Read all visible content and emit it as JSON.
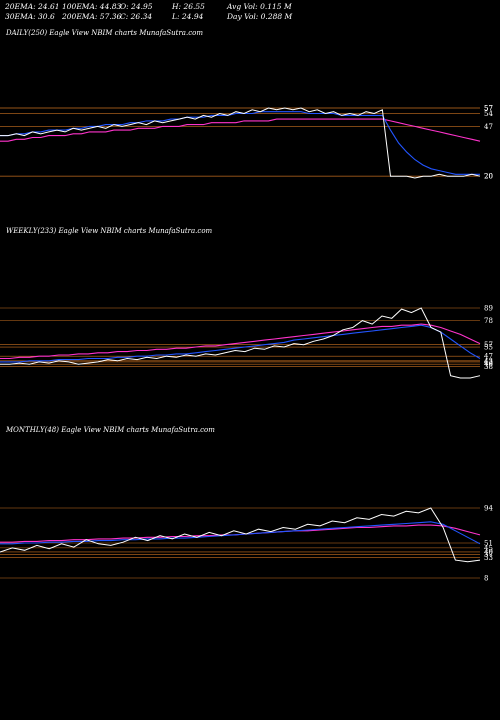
{
  "stats": {
    "ema20": "20EMA: 24.61",
    "ema100": "100EMA: 44.83",
    "open": "O: 24.95",
    "high": "H: 26.55",
    "avgvol": "Avg Vol: 0.115 M",
    "ema30": "30EMA: 30.6",
    "ema200": "200EMA: 57.36",
    "close": "C: 26.34",
    "low": "L: 24.94",
    "dayvol": "Day Vol: 0.288 M"
  },
  "colors": {
    "background": "#000000",
    "price": "#ffffff",
    "ema_short": "#2255ff",
    "ema_long": "#ff33cc",
    "ema_other": "#cccccc",
    "levels": "#c87020"
  },
  "chart_data": [
    {
      "type": "line",
      "title": "DAILY(250) Eagle  View  NBIM charts MunafaSutra.com",
      "right_labels": [
        "57",
        "57",
        "54",
        "47",
        "20",
        "20"
      ],
      "price": [
        42,
        42,
        43,
        42,
        44,
        43,
        44,
        45,
        44,
        46,
        45,
        46,
        47,
        46,
        48,
        47,
        48,
        49,
        48,
        50,
        49,
        50,
        51,
        52,
        51,
        53,
        52,
        54,
        53,
        55,
        54,
        56,
        55,
        57,
        56,
        57,
        56,
        57,
        55,
        56,
        54,
        55,
        53,
        54,
        53,
        55,
        54,
        56,
        20,
        20,
        20,
        19,
        20,
        20,
        21,
        20,
        20,
        20,
        21,
        20
      ],
      "ema_short": [
        42,
        42,
        43,
        43,
        44,
        44,
        45,
        45,
        45,
        46,
        46,
        47,
        47,
        48,
        48,
        48,
        49,
        49,
        50,
        50,
        50,
        51,
        51,
        52,
        52,
        52,
        53,
        53,
        53,
        54,
        54,
        54,
        55,
        55,
        55,
        55,
        55,
        55,
        54,
        54,
        54,
        54,
        53,
        53,
        53,
        53,
        53,
        53,
        45,
        38,
        33,
        29,
        26,
        24,
        23,
        22,
        21,
        21,
        21,
        21
      ],
      "ema_long": [
        39,
        39,
        40,
        40,
        41,
        41,
        42,
        42,
        42,
        43,
        43,
        44,
        44,
        44,
        45,
        45,
        45,
        46,
        46,
        46,
        47,
        47,
        47,
        48,
        48,
        48,
        49,
        49,
        49,
        49,
        50,
        50,
        50,
        50,
        51,
        51,
        51,
        51,
        51,
        51,
        51,
        51,
        51,
        51,
        51,
        51,
        51,
        51,
        50,
        49,
        48,
        47,
        46,
        45,
        44,
        43,
        42,
        41,
        40,
        39
      ]
    },
    {
      "type": "line",
      "title": "WEEKLY(233) Eagle  View  NBIM charts MunafaSutra.com",
      "right_labels": [
        "89",
        "78",
        "57",
        "55",
        "47",
        "43",
        "42",
        "40",
        "38"
      ],
      "price": [
        40,
        40,
        41,
        40,
        42,
        41,
        43,
        42,
        40,
        41,
        42,
        44,
        43,
        45,
        44,
        46,
        45,
        47,
        46,
        48,
        47,
        49,
        48,
        50,
        52,
        51,
        54,
        53,
        56,
        55,
        58,
        57,
        60,
        62,
        65,
        70,
        72,
        78,
        75,
        82,
        80,
        88,
        85,
        89,
        72,
        68,
        30,
        28,
        28,
        30
      ],
      "ema_short": [
        42,
        42,
        42,
        43,
        43,
        43,
        44,
        44,
        44,
        45,
        45,
        45,
        46,
        46,
        47,
        47,
        48,
        48,
        49,
        49,
        50,
        51,
        52,
        53,
        54,
        55,
        56,
        57,
        58,
        59,
        61,
        62,
        63,
        64,
        65,
        66,
        67,
        68,
        69,
        70,
        71,
        72,
        73,
        74,
        72,
        68,
        62,
        56,
        50,
        45
      ],
      "ema_long": [
        45,
        45,
        46,
        46,
        47,
        47,
        48,
        48,
        49,
        49,
        50,
        50,
        51,
        51,
        52,
        52,
        53,
        53,
        54,
        54,
        55,
        56,
        56,
        57,
        58,
        59,
        60,
        61,
        62,
        63,
        64,
        65,
        66,
        67,
        68,
        69,
        70,
        71,
        72,
        73,
        73,
        74,
        74,
        75,
        74,
        72,
        69,
        66,
        62,
        58
      ]
    },
    {
      "type": "line",
      "title": "MONTHLY(48) Eagle  View  NBIM charts MunafaSutra.com",
      "right_labels": [
        "94",
        "8",
        "51",
        "45",
        "40",
        "37",
        "33"
      ],
      "price": [
        40,
        45,
        42,
        48,
        44,
        50,
        46,
        55,
        50,
        48,
        52,
        58,
        54,
        60,
        56,
        62,
        58,
        64,
        60,
        66,
        62,
        68,
        65,
        70,
        68,
        74,
        72,
        78,
        76,
        82,
        80,
        86,
        84,
        90,
        88,
        94,
        70,
        30,
        28,
        30
      ],
      "ema_short": [
        50,
        50,
        51,
        51,
        52,
        52,
        53,
        53,
        54,
        54,
        55,
        55,
        56,
        56,
        57,
        57,
        58,
        59,
        60,
        61,
        62,
        63,
        64,
        65,
        66,
        67,
        68,
        69,
        70,
        71,
        72,
        73,
        74,
        75,
        76,
        77,
        74,
        66,
        58,
        50
      ],
      "ema_long": [
        52,
        52,
        53,
        53,
        54,
        54,
        55,
        55,
        56,
        56,
        57,
        57,
        58,
        58,
        59,
        59,
        60,
        60,
        61,
        61,
        62,
        63,
        64,
        65,
        66,
        66,
        67,
        68,
        69,
        70,
        70,
        71,
        72,
        72,
        73,
        73,
        72,
        69,
        65,
        61
      ]
    }
  ]
}
